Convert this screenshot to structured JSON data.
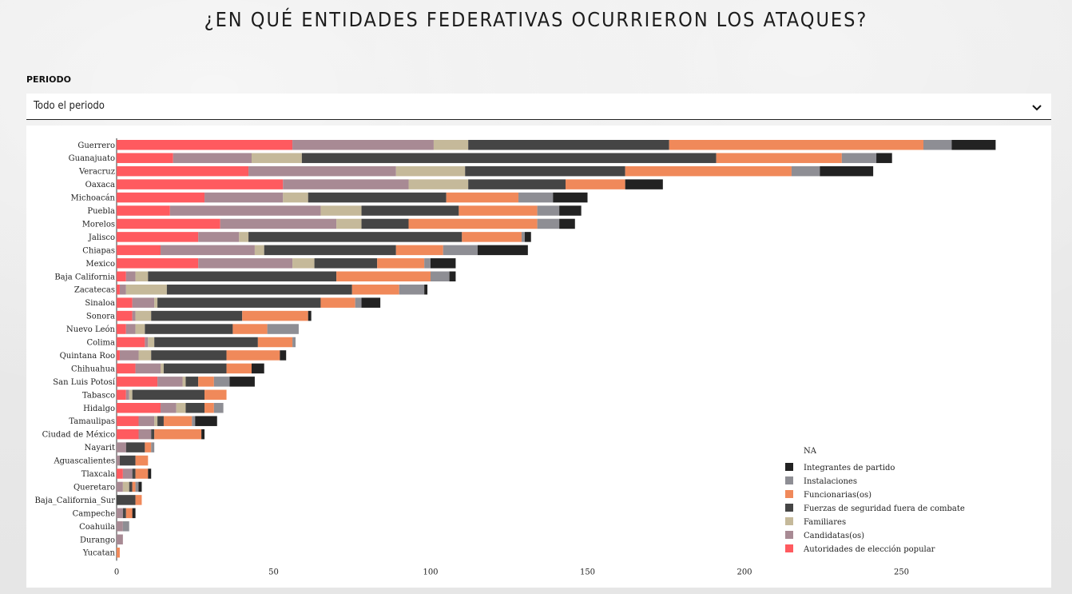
{
  "page": {
    "title": "¿EN QUÉ ENTIDADES FEDERATIVAS OCURRIERON LOS ATAQUES?"
  },
  "filter": {
    "label": "PERIODO",
    "selected": "Todo el periodo",
    "icon": "chevron-down-icon"
  },
  "chart_data": {
    "type": "bar",
    "orientation": "horizontal",
    "stacked": true,
    "xlim": [
      0,
      280
    ],
    "xticks": [
      0,
      50,
      100,
      150,
      200,
      250
    ],
    "legend_position": "bottom-right",
    "legend_title": "NA",
    "categories": [
      "Guerrero",
      "Guanajuato",
      "Veracruz",
      "Oaxaca",
      "Michoacán",
      "Puebla",
      "Morelos",
      "Jalisco",
      "Chiapas",
      "Mexico",
      "Baja California",
      "Zacatecas",
      "Sinaloa",
      "Sonora",
      "Nuevo León",
      "Colima",
      "Quintana Roo",
      "Chihuahua",
      "San Luis Potosí",
      "Tabasco",
      "Hidalgo",
      "Tamaulipas",
      "Ciudad de México",
      "Nayarit",
      "Aguascalientes",
      "Tlaxcala",
      "Queretaro",
      "Baja_California_Sur",
      "Campeche",
      "Coahuila",
      "Durango",
      "Yucatan"
    ],
    "series": [
      {
        "name": "Autoridades de elección popular",
        "color": "#ff5a5f",
        "values": [
          56,
          18,
          42,
          53,
          28,
          17,
          33,
          26,
          14,
          26,
          3,
          1,
          5,
          5,
          3,
          9,
          1,
          6,
          13,
          3,
          14,
          7,
          7,
          0,
          0,
          2,
          0,
          0,
          0,
          0,
          0,
          0
        ]
      },
      {
        "name": "Candidatas(os)",
        "color": "#a88a94",
        "values": [
          45,
          25,
          47,
          40,
          25,
          48,
          37,
          13,
          30,
          30,
          3,
          2,
          7,
          1,
          3,
          1,
          6,
          8,
          8,
          1,
          5,
          5,
          4,
          3,
          1,
          3,
          2,
          0,
          2,
          2,
          2,
          0
        ]
      },
      {
        "name": "Familiares",
        "color": "#c5b99a",
        "values": [
          11,
          16,
          22,
          19,
          8,
          13,
          8,
          3,
          3,
          7,
          4,
          13,
          1,
          5,
          3,
          2,
          4,
          1,
          1,
          1,
          3,
          1,
          0,
          0,
          0,
          0,
          2,
          0,
          0,
          0,
          0,
          0
        ]
      },
      {
        "name": "Fuerzas de seguridad fuera de combate",
        "color": "#454545",
        "values": [
          64,
          132,
          51,
          31,
          44,
          31,
          15,
          68,
          42,
          20,
          60,
          59,
          52,
          29,
          28,
          33,
          24,
          20,
          4,
          23,
          6,
          2,
          1,
          6,
          5,
          1,
          1,
          6,
          1,
          0,
          0,
          0
        ]
      },
      {
        "name": "Funcionarias(os)",
        "color": "#f0895a",
        "values": [
          81,
          40,
          53,
          19,
          23,
          25,
          41,
          19,
          15,
          15,
          30,
          15,
          11,
          21,
          11,
          11,
          17,
          8,
          5,
          7,
          3,
          9,
          15,
          2,
          4,
          4,
          1,
          2,
          2,
          0,
          0,
          1
        ]
      },
      {
        "name": "Instalaciones",
        "color": "#8e8e94",
        "values": [
          9,
          11,
          9,
          0,
          11,
          7,
          7,
          1,
          11,
          2,
          6,
          8,
          2,
          0,
          10,
          1,
          0,
          0,
          5,
          0,
          3,
          1,
          0,
          1,
          0,
          0,
          1,
          0,
          0,
          2,
          0,
          0
        ]
      },
      {
        "name": "Integrantes de partido",
        "color": "#222222",
        "values": [
          14,
          5,
          17,
          12,
          11,
          7,
          5,
          2,
          16,
          8,
          2,
          1,
          6,
          1,
          0,
          0,
          2,
          4,
          8,
          0,
          0,
          7,
          1,
          0,
          0,
          1,
          1,
          0,
          1,
          0,
          0,
          0
        ]
      }
    ]
  }
}
